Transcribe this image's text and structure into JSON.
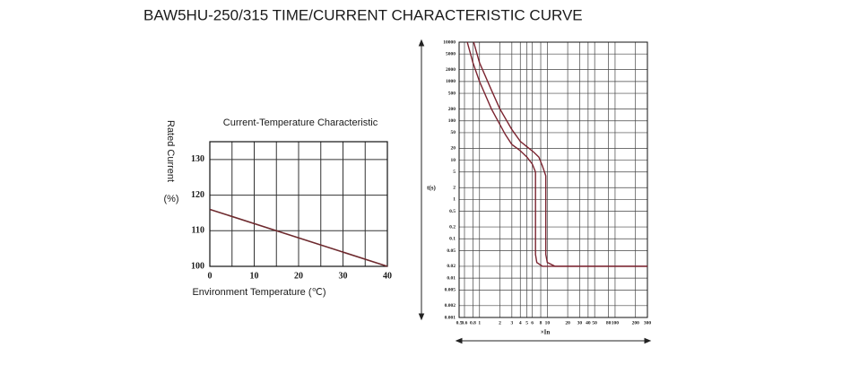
{
  "title": "BAW5HU-250/315 TIME/CURRENT CHARACTERISTIC CURVE",
  "chart_data": [
    {
      "type": "line",
      "title": "Current-Temperature Characteristic",
      "x_label": "Environment Temperature (℃)",
      "y_label": "Rated Current",
      "y_unit": "(%)",
      "x": [
        0,
        40
      ],
      "values": [
        116,
        100
      ],
      "color": "#6e2a2e",
      "xlim": [
        0,
        40
      ],
      "xticks": [
        0,
        10,
        20,
        30,
        40
      ],
      "ylim": [
        100,
        135
      ],
      "yticks": [
        100,
        110,
        120,
        130
      ],
      "grid": true
    },
    {
      "type": "line",
      "x_label": "×In",
      "y_label": "t(s)",
      "xscale": "log",
      "yscale": "log",
      "xlim": [
        0.5,
        300
      ],
      "xticks": [
        0.5,
        0.6,
        0.8,
        1,
        2,
        3,
        4,
        5,
        6,
        8,
        10,
        20,
        30,
        40,
        50,
        80,
        100,
        200,
        300
      ],
      "ylim": [
        0.001,
        10000
      ],
      "yticks": [
        0.001,
        0.002,
        0.005,
        0.01,
        0.02,
        0.05,
        0.1,
        0.2,
        0.5,
        1,
        2,
        5,
        10,
        20,
        50,
        100,
        200,
        500,
        1000,
        2000,
        5000,
        10000
      ],
      "grid": true,
      "series": [
        {
          "color": "#7b2430",
          "x": [
            0.66,
            0.8,
            1,
            1.5,
            2,
            2.4,
            3,
            3.9,
            5,
            6,
            6.7,
            6.7,
            7,
            8.5,
            300
          ],
          "values": [
            10000,
            3000,
            1000,
            200,
            80,
            45,
            25,
            18,
            12,
            8,
            5,
            0.04,
            0.025,
            0.02,
            0.02
          ]
        },
        {
          "color": "#7b2430",
          "x": [
            0.82,
            1,
            1.5,
            2,
            3,
            4,
            5,
            6.3,
            7.5,
            8.5,
            9.5,
            9.5,
            10,
            13,
            300
          ],
          "values": [
            10000,
            3000,
            600,
            200,
            60,
            30,
            22,
            16,
            12,
            7,
            4,
            0.04,
            0.025,
            0.02,
            0.02
          ]
        }
      ]
    }
  ]
}
